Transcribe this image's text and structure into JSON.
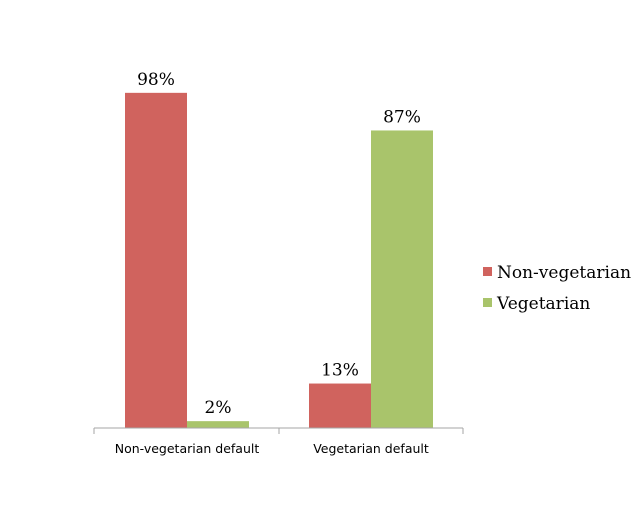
{
  "chart_data": {
    "type": "bar",
    "categories": [
      "Non-vegetarian default",
      "Vegetarian default"
    ],
    "series": [
      {
        "name": "Non-vegetarian",
        "values": [
          98,
          13
        ],
        "labels": [
          "98%",
          "13%"
        ],
        "color": "#d0635e"
      },
      {
        "name": "Vegetarian",
        "values": [
          2,
          87
        ],
        "labels": [
          "2%",
          "87%"
        ],
        "color": "#a9c46b"
      }
    ],
    "ylim": [
      0,
      100
    ],
    "grid": false,
    "legend": "right",
    "axis_color": "#a6a6a6"
  }
}
